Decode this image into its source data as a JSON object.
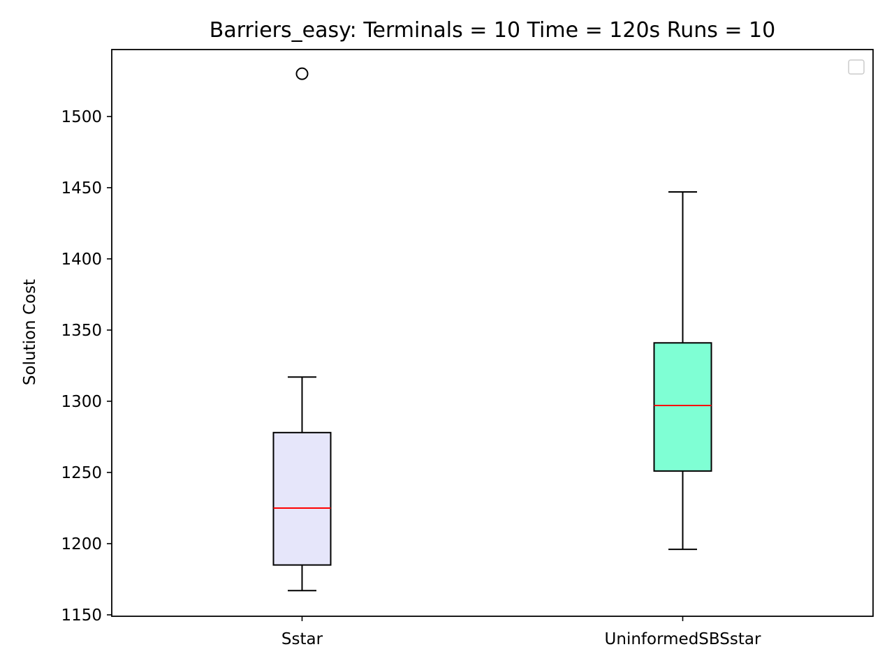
{
  "chart_data": {
    "type": "box",
    "title": "Barriers_easy:  Terminals = 10  Time = 120s  Runs = 10",
    "xlabel": "",
    "ylabel": "Solution Cost",
    "ylim": [
      1149,
      1547
    ],
    "yticks": [
      1150,
      1200,
      1250,
      1300,
      1350,
      1400,
      1450,
      1500
    ],
    "grid": false,
    "legend": "top-right, empty",
    "median_color": "#ff0000",
    "boxes": [
      {
        "category": "Sstar",
        "whisker_low": 1167,
        "q1": 1185,
        "median": 1225,
        "q3": 1278,
        "whisker_high": 1317,
        "outliers": [
          1530
        ],
        "fill": "#e6e6fa"
      },
      {
        "category": "UninformedSBSstar",
        "whisker_low": 1196,
        "q1": 1251,
        "median": 1297,
        "q3": 1341,
        "whisker_high": 1447,
        "outliers": [],
        "fill": "#7fffd4"
      }
    ]
  }
}
